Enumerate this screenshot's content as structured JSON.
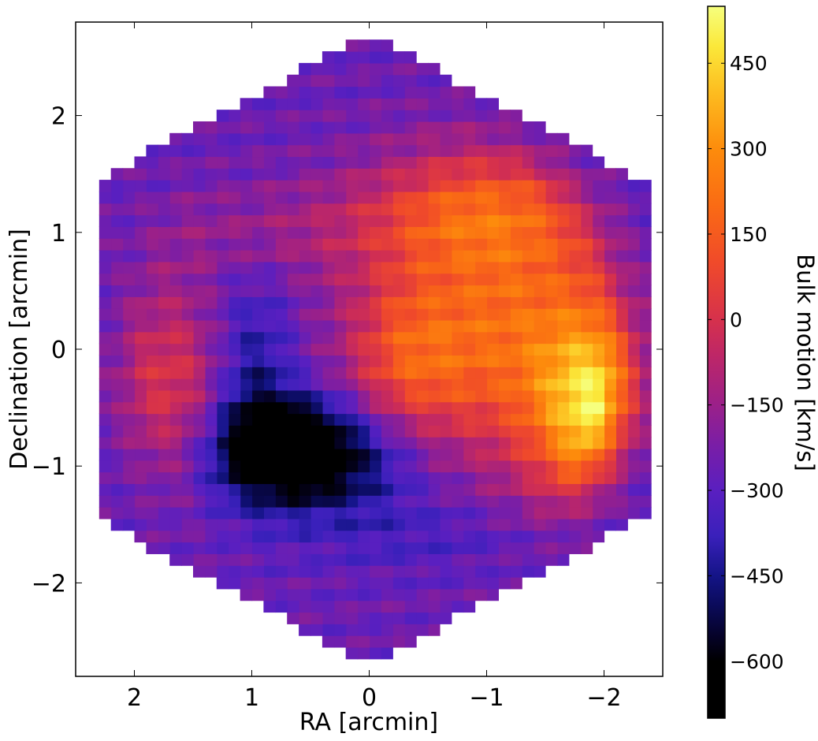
{
  "chart_data": {
    "type": "heatmap",
    "title": "",
    "xlabel": "RA [arcmin]",
    "ylabel": "Declination [arcmin]",
    "xlim": [
      2.5,
      -2.5
    ],
    "ylim": [
      -2.8,
      2.8
    ],
    "x_ticks": [
      2,
      1,
      0,
      -1,
      -2
    ],
    "x_tick_labels": [
      "2",
      "1",
      "0",
      "−1",
      "−2"
    ],
    "y_ticks": [
      2,
      1,
      0,
      -1,
      -2
    ],
    "y_tick_labels": [
      "2",
      "1",
      "0",
      "−1",
      "−2"
    ],
    "grid": false,
    "region": {
      "shape": "hexagon",
      "vertices": [
        [
          0,
          2.7
        ],
        [
          2.35,
          1.43
        ],
        [
          2.35,
          -1.43
        ],
        [
          0,
          -2.7
        ],
        [
          -2.35,
          -1.43
        ],
        [
          -2.35,
          1.43
        ]
      ]
    },
    "colorbar": {
      "label": "Bulk motion [km/s]",
      "range": [
        -700,
        550
      ],
      "ticks": [
        450,
        300,
        150,
        0,
        -150,
        -300,
        -450,
        -600
      ],
      "tick_labels": [
        "450",
        "300",
        "150",
        "0",
        "−150",
        "−300",
        "−450",
        "−600"
      ],
      "colormap": "gnuplot2-like",
      "stops": [
        [
          -700,
          "#000000"
        ],
        [
          -600,
          "#000000"
        ],
        [
          -560,
          "#050225"
        ],
        [
          -500,
          "#0b0b5c"
        ],
        [
          -450,
          "#141487"
        ],
        [
          -380,
          "#3a20bb"
        ],
        [
          -300,
          "#5a1fc0"
        ],
        [
          -220,
          "#7a1ea6"
        ],
        [
          -150,
          "#9b2089"
        ],
        [
          -60,
          "#bf2766"
        ],
        [
          0,
          "#d6314c"
        ],
        [
          100,
          "#f04a2a"
        ],
        [
          200,
          "#fa6b14"
        ],
        [
          300,
          "#fd8c0c"
        ],
        [
          400,
          "#fdbd20"
        ],
        [
          480,
          "#fbe83a"
        ],
        [
          550,
          "#f6ff7e"
        ]
      ]
    },
    "velocity_field": {
      "description_units": "km/s",
      "background": -260,
      "components": [
        {
          "kind": "blob",
          "center": [
            -1.95,
            -0.55
          ],
          "sigma": [
            0.35,
            0.55
          ],
          "value": 650
        },
        {
          "kind": "blob",
          "center": [
            -1.2,
            0.15
          ],
          "sigma": [
            0.8,
            0.9
          ],
          "value": 520
        },
        {
          "kind": "blob",
          "center": [
            -0.9,
            1.2
          ],
          "sigma": [
            0.7,
            0.35
          ],
          "value": 300
        },
        {
          "kind": "blob",
          "center": [
            -0.3,
            -0.1
          ],
          "sigma": [
            0.35,
            0.5
          ],
          "value": 250
        },
        {
          "kind": "blob",
          "center": [
            0.7,
            -0.85
          ],
          "sigma": [
            0.45,
            0.3
          ],
          "value": -480
        },
        {
          "kind": "blob",
          "center": [
            0.2,
            -0.95
          ],
          "sigma": [
            0.7,
            0.35
          ],
          "value": -250
        },
        {
          "kind": "blob",
          "center": [
            1.0,
            -0.2
          ],
          "sigma": [
            0.25,
            0.6
          ],
          "value": -220
        },
        {
          "kind": "blob",
          "center": [
            1.7,
            -0.3
          ],
          "sigma": [
            0.35,
            0.6
          ],
          "value": 320
        },
        {
          "kind": "blob",
          "center": [
            0.8,
            1.0
          ],
          "sigma": [
            0.8,
            0.3
          ],
          "value": 120
        },
        {
          "kind": "blob",
          "center": [
            -0.6,
            -1.6
          ],
          "sigma": [
            0.8,
            0.25
          ],
          "value": -120
        }
      ]
    }
  }
}
